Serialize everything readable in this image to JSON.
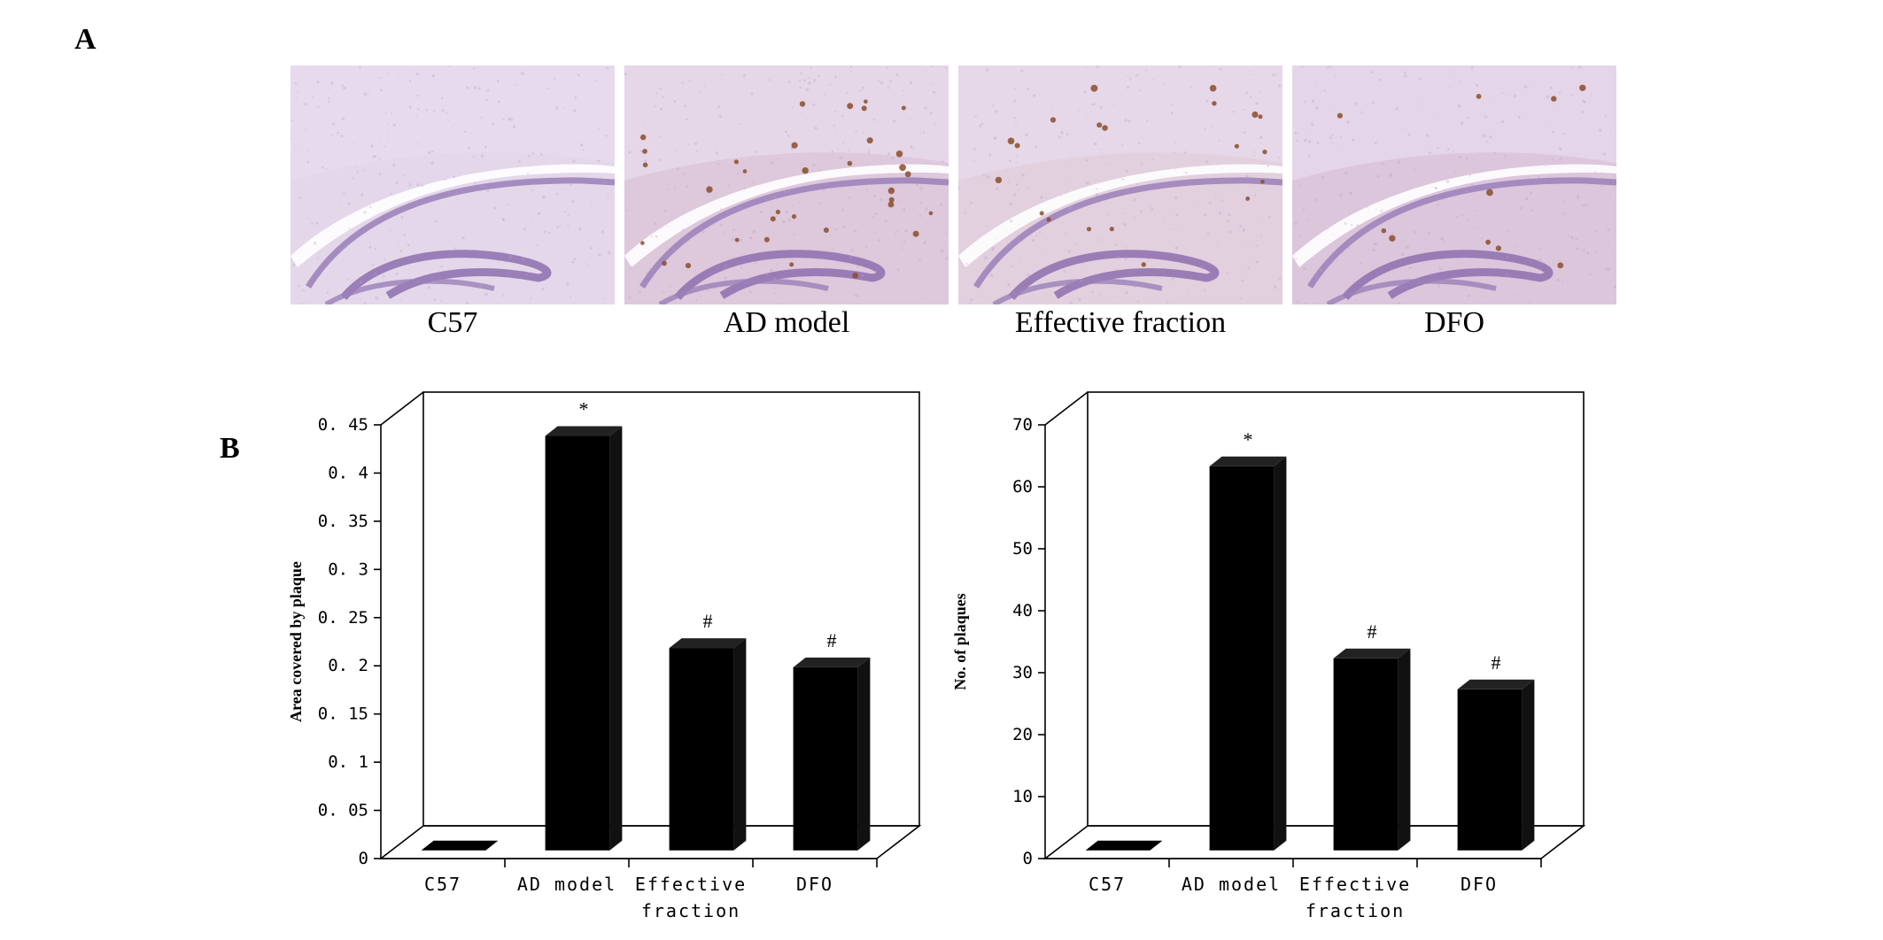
{
  "figure": {
    "panel_a_label": "A",
    "panel_b_label": "B"
  },
  "micrographs": [
    {
      "label": "C57",
      "plaque_count": 0,
      "tint": "#e4d7ea"
    },
    {
      "label": "AD model",
      "plaque_count": 34,
      "tint": "#ddc8dc"
    },
    {
      "label": "Effective fraction",
      "plaque_count": 20,
      "tint": "#e2d0df"
    },
    {
      "label": "DFO",
      "plaque_count": 10,
      "tint": "#dcc6dc"
    }
  ],
  "chart_data": [
    {
      "type": "bar",
      "categories": [
        "C57",
        "AD model",
        "Effective fraction",
        "DFO"
      ],
      "values": [
        0,
        0.43,
        0.21,
        0.19
      ],
      "annotations": [
        "",
        "*",
        "#",
        "#"
      ],
      "ylabel": "Area covered by plaque",
      "xlabel": "",
      "ylim": [
        0,
        0.45
      ],
      "yticks": [
        "0",
        "0. 05",
        "0. 1",
        "0. 15",
        "0. 2",
        "0. 25",
        "0. 3",
        "0. 35",
        "0. 4",
        "0. 45"
      ],
      "style": "3d-column",
      "bar_color": "#000000"
    },
    {
      "type": "bar",
      "categories": [
        "C57",
        "AD model",
        "Effective fraction",
        "DFO"
      ],
      "values": [
        0,
        62,
        31,
        26
      ],
      "annotations": [
        "",
        "*",
        "#",
        "#"
      ],
      "ylabel": "No. of plaques",
      "xlabel": "",
      "ylim": [
        0,
        70
      ],
      "yticks": [
        "0",
        "10",
        "20",
        "30",
        "40",
        "50",
        "60",
        "70"
      ],
      "style": "3d-column",
      "bar_color": "#000000"
    }
  ]
}
